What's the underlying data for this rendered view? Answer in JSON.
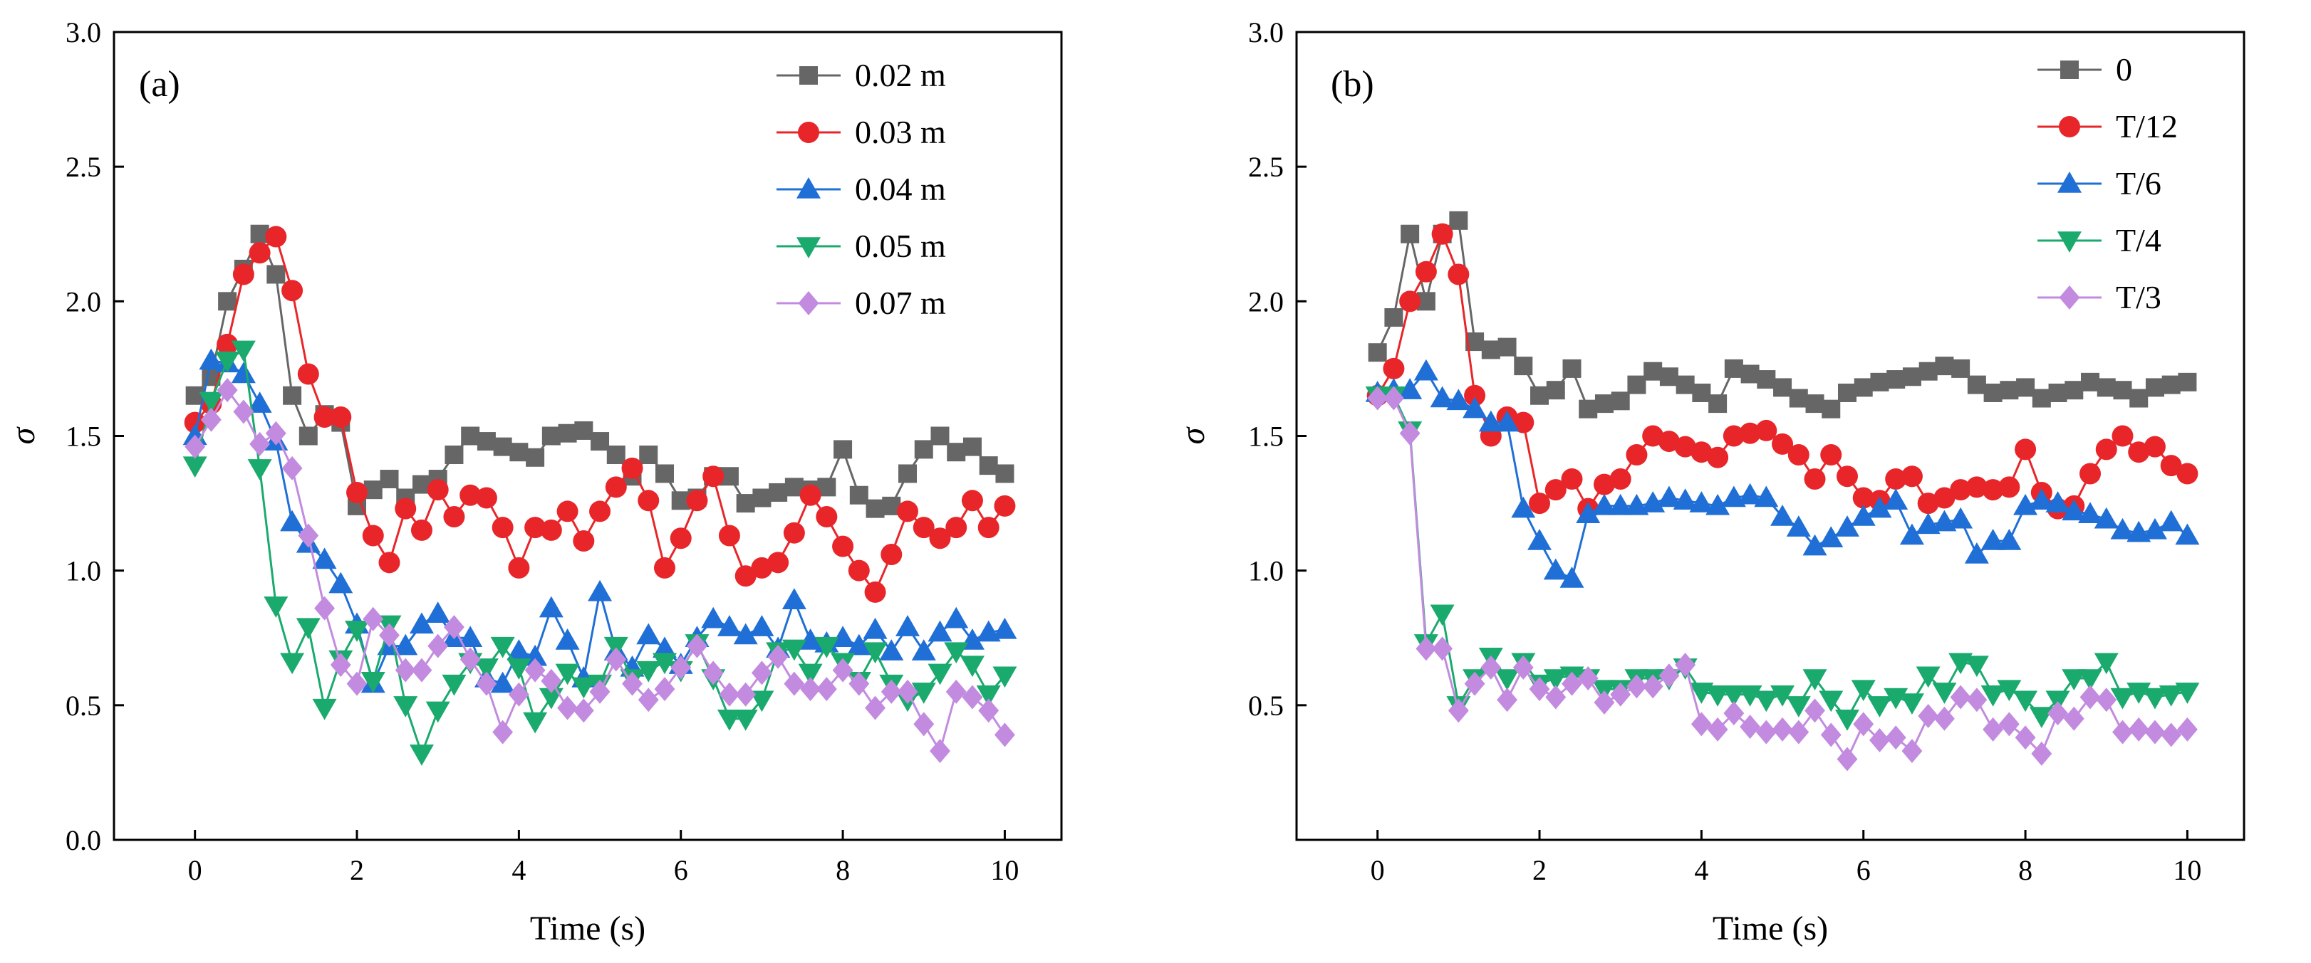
{
  "chart_data": [
    {
      "type": "line",
      "panel_label": "(a)",
      "xlabel": "Time (s)",
      "ylabel": "σ",
      "xlim": [
        -1,
        10.7
      ],
      "ylim": [
        0,
        3
      ],
      "xticks": [
        0,
        2,
        4,
        6,
        8,
        10
      ],
      "yticks": [
        0.0,
        0.5,
        1.0,
        1.5,
        2.0,
        2.5,
        3.0
      ],
      "ytick_labels": [
        "0.0",
        "0.5",
        "1.0",
        "1.5",
        "2.0",
        "2.5",
        "3.0"
      ],
      "xtick_labels": [
        "0",
        "2",
        "4",
        "6",
        "8",
        "10"
      ],
      "legend_position": "top-right",
      "grid": false,
      "x": [
        0,
        0.2,
        0.4,
        0.6,
        0.8,
        1.0,
        1.2,
        1.4,
        1.6,
        1.8,
        2.0,
        2.2,
        2.4,
        2.6,
        2.8,
        3.0,
        3.2,
        3.4,
        3.6,
        3.8,
        4.0,
        4.2,
        4.4,
        4.6,
        4.8,
        5.0,
        5.2,
        5.4,
        5.6,
        5.8,
        6.0,
        6.2,
        6.4,
        6.6,
        6.8,
        7.0,
        7.2,
        7.4,
        7.6,
        7.8,
        8.0,
        8.2,
        8.4,
        8.6,
        8.8,
        9.0,
        9.2,
        9.4,
        9.6,
        9.8,
        10.0
      ],
      "series": [
        {
          "name": "0.02 m",
          "color": "#666666",
          "marker": "square",
          "values": [
            1.65,
            1.72,
            2.0,
            2.12,
            2.25,
            2.1,
            1.65,
            1.5,
            1.58,
            1.55,
            1.24,
            1.3,
            1.34,
            1.27,
            1.32,
            1.34,
            1.43,
            1.5,
            1.48,
            1.46,
            1.44,
            1.42,
            1.5,
            1.51,
            1.52,
            1.48,
            1.43,
            1.35,
            1.43,
            1.36,
            1.26,
            1.27,
            1.35,
            1.35,
            1.25,
            1.27,
            1.29,
            1.31,
            1.3,
            1.31,
            1.45,
            1.28,
            1.23,
            1.24,
            1.36,
            1.45,
            1.5,
            1.44,
            1.46,
            1.39,
            1.36
          ]
        },
        {
          "name": "0.03 m",
          "color": "#e8262a",
          "marker": "circle",
          "values": [
            1.55,
            1.62,
            1.84,
            2.1,
            2.18,
            2.24,
            2.04,
            1.73,
            1.57,
            1.57,
            1.29,
            1.13,
            1.03,
            1.23,
            1.15,
            1.3,
            1.2,
            1.28,
            1.27,
            1.16,
            1.01,
            1.16,
            1.15,
            1.22,
            1.11,
            1.22,
            1.31,
            1.38,
            1.26,
            1.01,
            1.12,
            1.26,
            1.35,
            1.13,
            0.98,
            1.01,
            1.03,
            1.14,
            1.28,
            1.2,
            1.09,
            1.0,
            0.92,
            1.06,
            1.22,
            1.16,
            1.12,
            1.16,
            1.26,
            1.16,
            1.24
          ]
        },
        {
          "name": "0.04 m",
          "color": "#1f6fd6",
          "marker": "triangle-up",
          "values": [
            1.5,
            1.78,
            1.77,
            1.73,
            1.62,
            1.48,
            1.18,
            1.1,
            1.04,
            0.95,
            0.8,
            0.58,
            0.72,
            0.72,
            0.8,
            0.84,
            0.75,
            0.75,
            0.6,
            0.58,
            0.7,
            0.68,
            0.86,
            0.74,
            0.6,
            0.92,
            0.7,
            0.64,
            0.76,
            0.71,
            0.65,
            0.75,
            0.82,
            0.79,
            0.76,
            0.79,
            0.71,
            0.89,
            0.74,
            0.73,
            0.75,
            0.72,
            0.78,
            0.7,
            0.79,
            0.7,
            0.77,
            0.82,
            0.74,
            0.77,
            0.78
          ]
        },
        {
          "name": "0.05 m",
          "color": "#1aaa6e",
          "marker": "triangle-down",
          "values": [
            1.39,
            1.63,
            1.78,
            1.82,
            1.38,
            0.87,
            0.66,
            0.79,
            0.49,
            0.67,
            0.78,
            0.59,
            0.8,
            0.5,
            0.32,
            0.48,
            0.58,
            0.66,
            0.64,
            0.72,
            0.64,
            0.44,
            0.53,
            0.62,
            0.57,
            0.58,
            0.72,
            0.6,
            0.63,
            0.66,
            0.63,
            0.73,
            0.6,
            0.45,
            0.45,
            0.52,
            0.7,
            0.71,
            0.62,
            0.72,
            0.66,
            0.59,
            0.7,
            0.58,
            0.52,
            0.55,
            0.62,
            0.7,
            0.65,
            0.54,
            0.61
          ]
        },
        {
          "name": "0.07 m",
          "color": "#c28be0",
          "marker": "diamond",
          "values": [
            1.46,
            1.56,
            1.67,
            1.59,
            1.47,
            1.51,
            1.38,
            1.13,
            0.86,
            0.65,
            0.58,
            0.82,
            0.76,
            0.63,
            0.63,
            0.72,
            0.79,
            0.67,
            0.58,
            0.4,
            0.54,
            0.63,
            0.59,
            0.49,
            0.48,
            0.55,
            0.67,
            0.58,
            0.52,
            0.56,
            0.64,
            0.72,
            0.62,
            0.54,
            0.54,
            0.62,
            0.68,
            0.58,
            0.56,
            0.56,
            0.63,
            0.58,
            0.49,
            0.55,
            0.55,
            0.43,
            0.33,
            0.55,
            0.53,
            0.48,
            0.39
          ]
        }
      ]
    },
    {
      "type": "line",
      "panel_label": "(b)",
      "xlabel": "Time (s)",
      "ylabel": "σ",
      "xlim": [
        -1,
        10.7
      ],
      "ylim": [
        0,
        3
      ],
      "xticks": [
        0,
        2,
        4,
        6,
        8,
        10
      ],
      "yticks": [
        0.5,
        1.0,
        1.5,
        2.0,
        2.5,
        3.0
      ],
      "ytick_labels": [
        "0.5",
        "1.0",
        "1.5",
        "2.0",
        "2.5",
        "3.0"
      ],
      "xtick_labels": [
        "0",
        "2",
        "4",
        "6",
        "8",
        "10"
      ],
      "legend_position": "top-right",
      "grid": false,
      "x": [
        0,
        0.2,
        0.4,
        0.6,
        0.8,
        1.0,
        1.2,
        1.4,
        1.6,
        1.8,
        2.0,
        2.2,
        2.4,
        2.6,
        2.8,
        3.0,
        3.2,
        3.4,
        3.6,
        3.8,
        4.0,
        4.2,
        4.4,
        4.6,
        4.8,
        5.0,
        5.2,
        5.4,
        5.6,
        5.8,
        6.0,
        6.2,
        6.4,
        6.6,
        6.8,
        7.0,
        7.2,
        7.4,
        7.6,
        7.8,
        8.0,
        8.2,
        8.4,
        8.6,
        8.8,
        9.0,
        9.2,
        9.4,
        9.6,
        9.8,
        10.0
      ],
      "series": [
        {
          "name": "0",
          "color": "#666666",
          "marker": "square",
          "values": [
            1.81,
            1.94,
            2.25,
            2.0,
            2.25,
            2.3,
            1.85,
            1.82,
            1.83,
            1.76,
            1.65,
            1.67,
            1.75,
            1.6,
            1.62,
            1.63,
            1.69,
            1.74,
            1.72,
            1.69,
            1.66,
            1.62,
            1.75,
            1.73,
            1.71,
            1.68,
            1.64,
            1.62,
            1.6,
            1.66,
            1.68,
            1.7,
            1.71,
            1.72,
            1.74,
            1.76,
            1.75,
            1.69,
            1.66,
            1.67,
            1.68,
            1.64,
            1.66,
            1.67,
            1.7,
            1.68,
            1.67,
            1.64,
            1.68,
            1.69,
            1.7
          ]
        },
        {
          "name": "T/12",
          "color": "#e8262a",
          "marker": "circle",
          "values": [
            1.65,
            1.75,
            2.0,
            2.11,
            2.25,
            2.1,
            1.65,
            1.5,
            1.57,
            1.55,
            1.25,
            1.3,
            1.34,
            1.23,
            1.32,
            1.34,
            1.43,
            1.5,
            1.48,
            1.46,
            1.44,
            1.42,
            1.5,
            1.51,
            1.52,
            1.47,
            1.43,
            1.34,
            1.43,
            1.35,
            1.27,
            1.26,
            1.34,
            1.35,
            1.25,
            1.27,
            1.3,
            1.31,
            1.3,
            1.31,
            1.45,
            1.29,
            1.23,
            1.24,
            1.36,
            1.45,
            1.5,
            1.44,
            1.46,
            1.39,
            1.36
          ]
        },
        {
          "name": "T/6",
          "color": "#1f6fd6",
          "marker": "triangle-up",
          "values": [
            1.66,
            1.67,
            1.67,
            1.74,
            1.64,
            1.63,
            1.6,
            1.55,
            1.55,
            1.23,
            1.11,
            1.0,
            0.97,
            1.21,
            1.24,
            1.24,
            1.24,
            1.25,
            1.27,
            1.26,
            1.25,
            1.24,
            1.27,
            1.28,
            1.27,
            1.2,
            1.16,
            1.09,
            1.12,
            1.16,
            1.2,
            1.23,
            1.26,
            1.13,
            1.17,
            1.18,
            1.19,
            1.06,
            1.11,
            1.11,
            1.24,
            1.26,
            1.25,
            1.22,
            1.21,
            1.19,
            1.15,
            1.14,
            1.15,
            1.18,
            1.13
          ]
        },
        {
          "name": "T/4",
          "color": "#1aaa6e",
          "marker": "triangle-down",
          "values": [
            1.65,
            1.65,
            1.52,
            0.73,
            0.84,
            0.5,
            0.6,
            0.68,
            0.6,
            0.66,
            0.58,
            0.6,
            0.61,
            0.6,
            0.56,
            0.56,
            0.6,
            0.6,
            0.6,
            0.64,
            0.55,
            0.54,
            0.54,
            0.54,
            0.52,
            0.54,
            0.5,
            0.6,
            0.52,
            0.45,
            0.56,
            0.5,
            0.53,
            0.51,
            0.61,
            0.55,
            0.66,
            0.65,
            0.54,
            0.56,
            0.52,
            0.46,
            0.52,
            0.6,
            0.6,
            0.66,
            0.53,
            0.55,
            0.53,
            0.54,
            0.55
          ]
        },
        {
          "name": "T/3",
          "color": "#c28be0",
          "marker": "diamond",
          "values": [
            1.64,
            1.64,
            1.51,
            0.71,
            0.71,
            0.48,
            0.58,
            0.64,
            0.52,
            0.64,
            0.56,
            0.53,
            0.58,
            0.6,
            0.51,
            0.54,
            0.57,
            0.57,
            0.61,
            0.65,
            0.43,
            0.41,
            0.47,
            0.42,
            0.4,
            0.41,
            0.4,
            0.48,
            0.39,
            0.3,
            0.43,
            0.37,
            0.38,
            0.33,
            0.46,
            0.45,
            0.53,
            0.52,
            0.41,
            0.43,
            0.38,
            0.32,
            0.47,
            0.45,
            0.53,
            0.52,
            0.4,
            0.41,
            0.4,
            0.39,
            0.41
          ]
        }
      ]
    }
  ]
}
